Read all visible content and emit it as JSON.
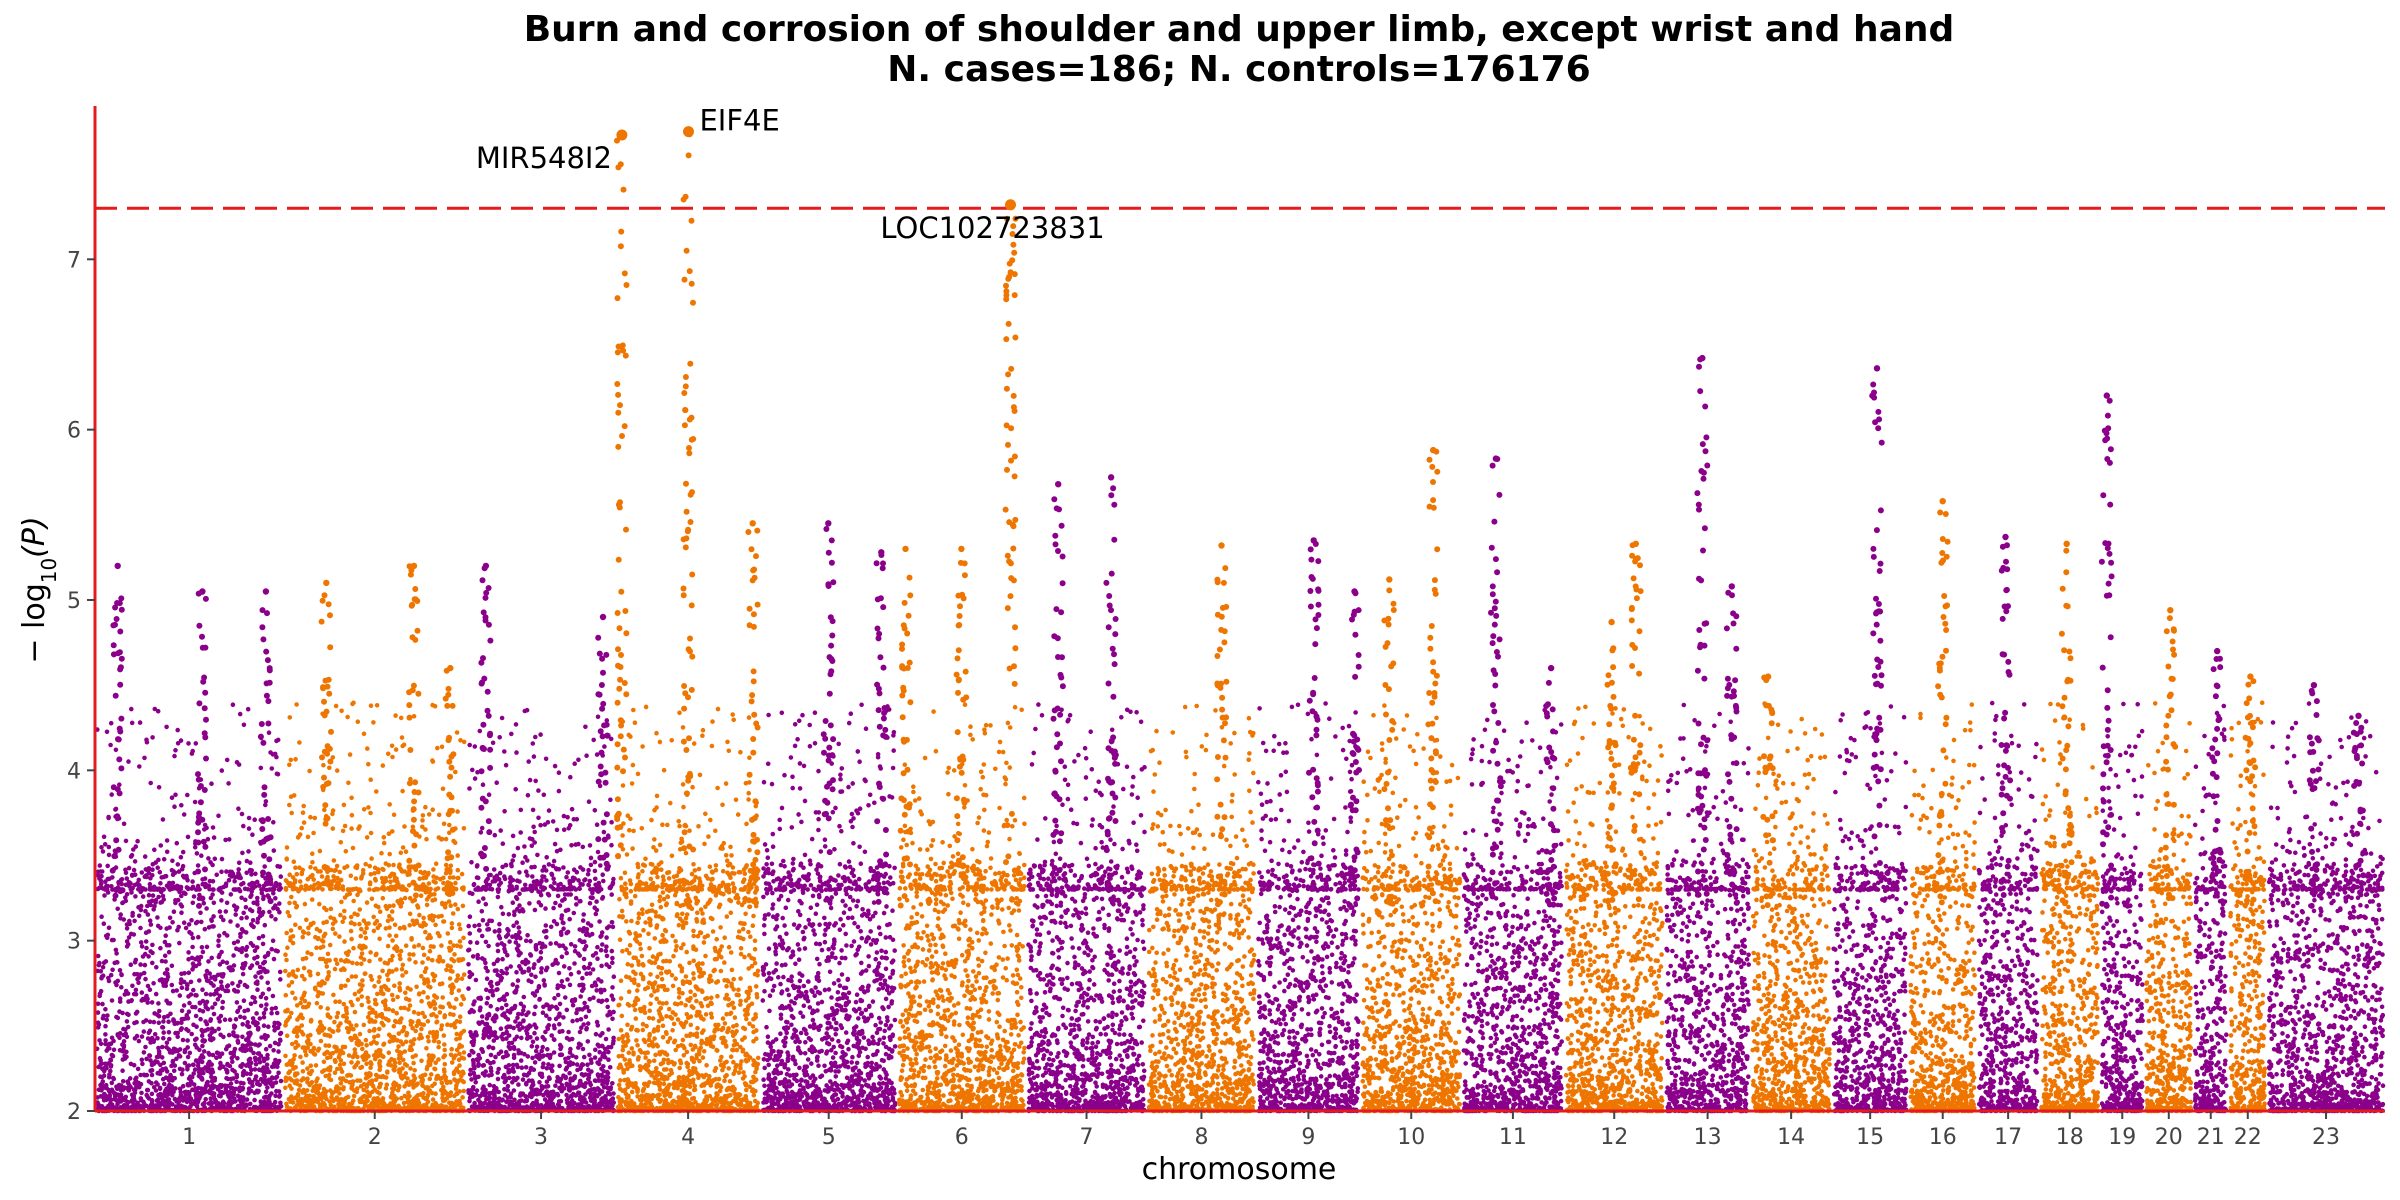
{
  "chart_data": {
    "type": "scatter",
    "title": "Burn and corrosion of shoulder and upper limb, except wrist and hand",
    "subtitle": "N. cases=186; N. controls=176176",
    "xlabel": "chromosome",
    "ylabel_prefix": "− log",
    "ylabel_sub": "10",
    "ylabel_suffix": "(P)",
    "ylim": [
      2,
      7.9
    ],
    "yticks": [
      2,
      3,
      4,
      5,
      6,
      7
    ],
    "significance_threshold": 7.3,
    "threshold_color": "#e41a1c",
    "axis_color": "#e41a1c",
    "colors": {
      "odd": "#8b008b",
      "even": "#ee7600"
    },
    "grid": false,
    "legend": "none",
    "chromosomes": [
      {
        "label": "1",
        "span": [
          0,
          249
        ]
      },
      {
        "label": "2",
        "span": [
          249,
          491
        ]
      },
      {
        "label": "3",
        "span": [
          491,
          689
        ]
      },
      {
        "label": "4",
        "span": [
          689,
          880
        ]
      },
      {
        "label": "5",
        "span": [
          880,
          1061
        ]
      },
      {
        "label": "6",
        "span": [
          1061,
          1232
        ]
      },
      {
        "label": "7",
        "span": [
          1232,
          1391
        ]
      },
      {
        "label": "8",
        "span": [
          1391,
          1536
        ]
      },
      {
        "label": "9",
        "span": [
          1536,
          1674
        ]
      },
      {
        "label": "10",
        "span": [
          1674,
          1808
        ]
      },
      {
        "label": "11",
        "span": [
          1808,
          1943
        ]
      },
      {
        "label": "12",
        "span": [
          1943,
          2076
        ]
      },
      {
        "label": "13",
        "span": [
          2076,
          2190
        ]
      },
      {
        "label": "14",
        "span": [
          2190,
          2297
        ]
      },
      {
        "label": "15",
        "span": [
          2297,
          2399
        ]
      },
      {
        "label": "16",
        "span": [
          2399,
          2489
        ]
      },
      {
        "label": "17",
        "span": [
          2489,
          2572
        ]
      },
      {
        "label": "18",
        "span": [
          2572,
          2652
        ]
      },
      {
        "label": "19",
        "span": [
          2652,
          2711
        ]
      },
      {
        "label": "20",
        "span": [
          2711,
          2775
        ]
      },
      {
        "label": "21",
        "span": [
          2775,
          2822
        ]
      },
      {
        "label": "22",
        "span": [
          2822,
          2873
        ]
      },
      {
        "label": "23",
        "span": [
          2873,
          3029
        ]
      }
    ],
    "peaks": [
      {
        "pos": 30,
        "y": 5.2
      },
      {
        "pos": 142,
        "y": 5.05
      },
      {
        "pos": 226,
        "y": 5.05
      },
      {
        "pos": 306,
        "y": 5.1
      },
      {
        "pos": 422,
        "y": 5.2
      },
      {
        "pos": 470,
        "y": 4.6
      },
      {
        "pos": 517,
        "y": 5.2
      },
      {
        "pos": 672,
        "y": 4.9
      },
      {
        "pos": 697,
        "y": 7.73
      },
      {
        "pos": 785,
        "y": 7.75
      },
      {
        "pos": 870,
        "y": 5.45
      },
      {
        "pos": 970,
        "y": 5.45
      },
      {
        "pos": 1040,
        "y": 5.28
      },
      {
        "pos": 1072,
        "y": 5.3
      },
      {
        "pos": 1146,
        "y": 5.3
      },
      {
        "pos": 1211,
        "y": 7.32
      },
      {
        "pos": 1274,
        "y": 5.68
      },
      {
        "pos": 1344,
        "y": 5.72
      },
      {
        "pos": 1490,
        "y": 5.32
      },
      {
        "pos": 1612,
        "y": 5.35
      },
      {
        "pos": 1666,
        "y": 5.05
      },
      {
        "pos": 1712,
        "y": 5.12
      },
      {
        "pos": 1770,
        "y": 5.88
      },
      {
        "pos": 1853,
        "y": 5.83
      },
      {
        "pos": 1926,
        "y": 4.6
      },
      {
        "pos": 2006,
        "y": 4.87
      },
      {
        "pos": 2038,
        "y": 5.33
      },
      {
        "pos": 2126,
        "y": 6.42
      },
      {
        "pos": 2165,
        "y": 5.08
      },
      {
        "pos": 2213,
        "y": 4.55
      },
      {
        "pos": 2357,
        "y": 6.36
      },
      {
        "pos": 2444,
        "y": 5.58
      },
      {
        "pos": 2527,
        "y": 5.37
      },
      {
        "pos": 2608,
        "y": 5.33
      },
      {
        "pos": 2661,
        "y": 6.2
      },
      {
        "pos": 2745,
        "y": 4.94
      },
      {
        "pos": 2807,
        "y": 4.7
      },
      {
        "pos": 2851,
        "y": 4.55
      },
      {
        "pos": 2935,
        "y": 4.5
      },
      {
        "pos": 2994,
        "y": 4.32
      }
    ],
    "labeled_hits": [
      {
        "label": "MIR548I2",
        "pos": 697,
        "y": 7.73,
        "chromosome": "4",
        "label_side": "left"
      },
      {
        "label": "EIF4E",
        "pos": 785,
        "y": 7.75,
        "chromosome": "4",
        "label_side": "right"
      },
      {
        "label": "LOC102723831",
        "pos": 1211,
        "y": 7.32,
        "chromosome": "6",
        "label_side": "below"
      }
    ]
  }
}
